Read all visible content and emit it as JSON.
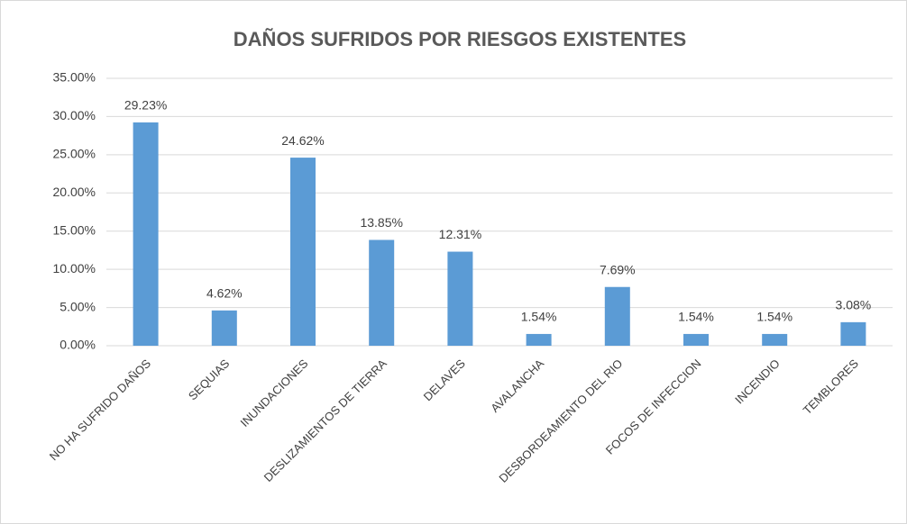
{
  "chart_data": {
    "type": "bar",
    "title": "DAÑOS SUFRIDOS POR RIESGOS EXISTENTES",
    "categories": [
      "NO HA SUFRIDO DAÑOS",
      "SEQUIAS",
      "INUNDACIONES",
      "DESLIZAMIENTOS DE TIERRA",
      "DELAVES",
      "AVALANCHA",
      "DESBORDEAMIENTO DEL RIO",
      "FOCOS DE INFECCION",
      "INCENDIO",
      "TEMBLORES"
    ],
    "values": [
      29.23,
      4.62,
      24.62,
      13.85,
      12.31,
      1.54,
      7.69,
      1.54,
      1.54,
      3.08
    ],
    "value_labels": [
      "29.23%",
      "4.62%",
      "24.62%",
      "13.85%",
      "12.31%",
      "1.54%",
      "7.69%",
      "1.54%",
      "1.54%",
      "3.08%"
    ],
    "color": "#5b9bd5",
    "ylim": [
      0,
      35
    ],
    "yticks": [
      {
        "value": 0,
        "label": "0.00%"
      },
      {
        "value": 5,
        "label": "5.00%"
      },
      {
        "value": 10,
        "label": "10.00%"
      },
      {
        "value": 15,
        "label": "15.00%"
      },
      {
        "value": 20,
        "label": "20.00%"
      },
      {
        "value": 25,
        "label": "25.00%"
      },
      {
        "value": 30,
        "label": "30.00%"
      },
      {
        "value": 35,
        "label": "35.00%"
      }
    ],
    "grid": true
  }
}
